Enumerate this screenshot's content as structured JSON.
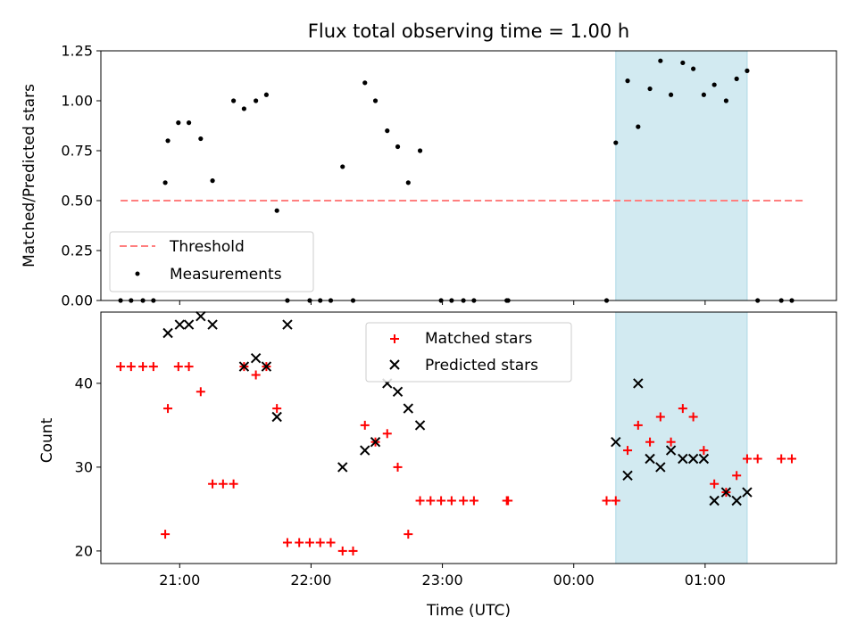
{
  "chart_data": [
    {
      "type": "scatter",
      "title": "Flux total observing time = 1.00 h",
      "xlabel": "",
      "ylabel": "Matched/Predicted stars",
      "ylim": [
        0,
        1.25
      ],
      "yticks": [
        "0.00",
        "0.25",
        "0.50",
        "0.75",
        "1.00",
        "1.25"
      ],
      "xlim_hours": [
        20.4,
        26.0
      ],
      "highlight_span_hours": [
        24.32,
        25.32
      ],
      "highlight_color": "#add8e6",
      "threshold": {
        "name": "Threshold",
        "value": 0.5,
        "x_from": 20.55,
        "x_to": 25.75,
        "color": "#ff7f7f"
      },
      "series": [
        {
          "name": "Measurements",
          "color": "#000000",
          "x": [
            20.55,
            20.63,
            20.72,
            20.8,
            20.89,
            20.91,
            20.99,
            21.07,
            21.16,
            21.25,
            21.41,
            21.49,
            21.58,
            21.66,
            21.74,
            21.82,
            21.99,
            22.07,
            22.15,
            22.24,
            22.32,
            22.41,
            22.49,
            22.58,
            22.66,
            22.74,
            22.83,
            22.99,
            23.07,
            23.16,
            23.24,
            23.49,
            23.5,
            24.25,
            24.32,
            24.41,
            24.49,
            24.58,
            24.66,
            24.74,
            24.83,
            24.91,
            24.99,
            25.07,
            25.16,
            25.24,
            25.32,
            25.4,
            25.58,
            25.66
          ],
          "y": [
            0,
            0,
            0,
            0,
            0.59,
            0.8,
            0.89,
            0.89,
            0.81,
            0.6,
            1.0,
            0.96,
            1.0,
            1.03,
            0.45,
            0,
            0,
            0,
            0,
            0.67,
            0,
            1.09,
            1.0,
            0.85,
            0.77,
            0.59,
            0.75,
            0,
            0,
            0,
            0,
            0,
            0,
            0,
            0.79,
            1.1,
            0.87,
            1.06,
            1.2,
            1.03,
            1.19,
            1.16,
            1.03,
            1.08,
            1.0,
            1.11,
            1.15,
            0,
            0,
            0
          ]
        }
      ],
      "legend": [
        "Threshold",
        "Measurements"
      ],
      "legend_position": "lower-left"
    },
    {
      "type": "scatter",
      "title": "",
      "xlabel": "Time (UTC)",
      "ylabel": "Count",
      "yticks": [
        20,
        30,
        40
      ],
      "ylim": [
        18.5,
        48.5
      ],
      "xlim_hours": [
        20.4,
        26.0
      ],
      "xticks": [
        {
          "hour": 21,
          "label": "21:00"
        },
        {
          "hour": 22,
          "label": "22:00"
        },
        {
          "hour": 23,
          "label": "23:00"
        },
        {
          "hour": 24,
          "label": "00:00"
        },
        {
          "hour": 25,
          "label": "01:00"
        }
      ],
      "highlight_span_hours": [
        24.32,
        25.32
      ],
      "series": [
        {
          "name": "Matched stars",
          "marker": "+",
          "color": "#ff0000",
          "x": [
            20.55,
            20.63,
            20.72,
            20.8,
            20.89,
            20.91,
            20.99,
            21.07,
            21.16,
            21.25,
            21.33,
            21.41,
            21.49,
            21.58,
            21.66,
            21.74,
            21.82,
            21.91,
            21.99,
            22.07,
            22.15,
            22.24,
            22.32,
            22.41,
            22.49,
            22.58,
            22.66,
            22.74,
            22.83,
            22.91,
            22.99,
            23.07,
            23.16,
            23.24,
            23.49,
            23.5,
            24.25,
            24.32,
            24.41,
            24.49,
            24.58,
            24.66,
            24.74,
            24.83,
            24.91,
            24.99,
            25.07,
            25.16,
            25.24,
            25.32,
            25.4,
            25.58,
            25.66
          ],
          "y": [
            42,
            42,
            42,
            42,
            22,
            37,
            42,
            42,
            39,
            28,
            28,
            28,
            42,
            41,
            42,
            37,
            21,
            21,
            21,
            21,
            21,
            20,
            20,
            35,
            33,
            34,
            30,
            22,
            26,
            26,
            26,
            26,
            26,
            26,
            26,
            26,
            26,
            26,
            32,
            35,
            33,
            36,
            33,
            37,
            36,
            32,
            28,
            27,
            29,
            31,
            31,
            31,
            31
          ]
        },
        {
          "name": "Predicted stars",
          "marker": "x",
          "color": "#000000",
          "x": [
            20.91,
            21.0,
            21.07,
            21.16,
            21.25,
            21.49,
            21.58,
            21.66,
            21.74,
            21.82,
            22.24,
            22.41,
            22.49,
            22.58,
            22.66,
            22.74,
            22.83,
            24.32,
            24.41,
            24.49,
            24.58,
            24.66,
            24.74,
            24.83,
            24.91,
            24.99,
            25.07,
            25.16,
            25.24,
            25.32
          ],
          "y": [
            46,
            47,
            47,
            48,
            47,
            42,
            43,
            42,
            36,
            47,
            30,
            32,
            33,
            40,
            39,
            37,
            35,
            33,
            29,
            40,
            31,
            30,
            32,
            31,
            31,
            31,
            26,
            27,
            26,
            27
          ]
        }
      ],
      "legend": [
        "Matched stars",
        "Predicted stars"
      ],
      "legend_position": "top-center"
    }
  ]
}
